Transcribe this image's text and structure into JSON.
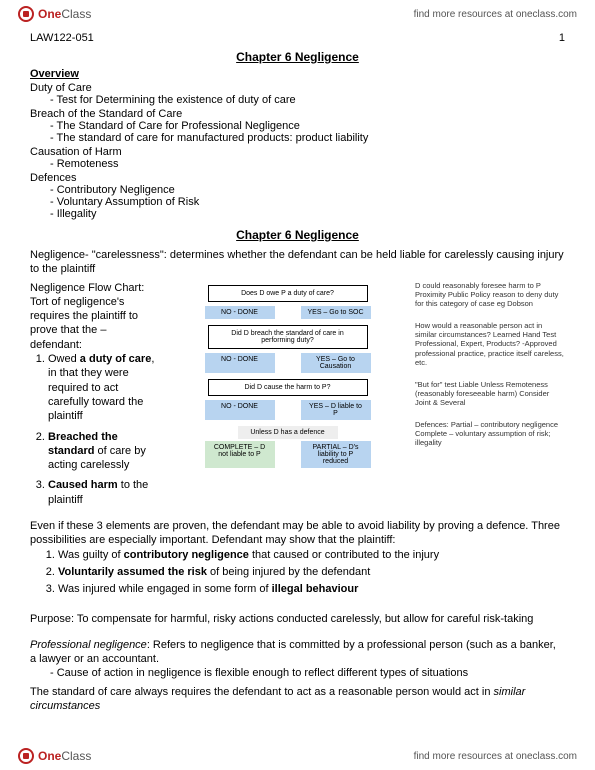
{
  "header": {
    "logo_one": "One",
    "logo_class": "Class",
    "link": "find more resources at oneclass.com"
  },
  "course": "LAW122-051",
  "page_number": "1",
  "title": "Chapter 6 Negligence",
  "overview": {
    "heading": "Overview",
    "duty_head": "Duty of Care",
    "duty_item": "Test for Determining the existence of duty of care",
    "breach_head": "Breach of the Standard of Care",
    "breach_item1": "The Standard of Care for Professional Negligence",
    "breach_item2": "The standard of care for manufactured products: product liability",
    "causation_head": "Causation of Harm",
    "causation_item": "Remoteness",
    "defences_head": "Defences",
    "def_item1": "Contributory Negligence",
    "def_item2": "Voluntary Assumption of Risk",
    "def_item3": "Illegality"
  },
  "subtitle": "Chapter 6 Negligence",
  "neg_def": "Negligence- \"carelessness\": determines whether the defendant can be held liable for carelessly causing injury to the plaintiff",
  "left": {
    "l1": "Negligence Flow Chart:",
    "l2": "Tort of negligence's",
    "l3": "requires the plaintiff to",
    "l4": "prove that the –",
    "l5": "defendant:",
    "li1a": "Owed ",
    "li1b": "a duty of care",
    "li1c": ", in that they were required to act carefully toward the plaintiff",
    "li2a": "Breached the standard",
    "li2b": " of care by acting carelessly",
    "li3a": "Caused harm",
    "li3b": " to the plaintiff"
  },
  "chart": {
    "q1": "Does D owe P a duty of care?",
    "no_done": "NO - DONE",
    "yes_soc": "YES – Go to SOC",
    "q2": "Did D breach the standard of care in performing duty?",
    "yes_caus": "YES – Go to Causation",
    "q3": "Did D cause the harm to P?",
    "yes_liable": "YES – D liable to P",
    "unless": "Unless D has a defence",
    "complete": "COMPLETE – D not liable to P",
    "partial": "PARTIAL – D's liability to P reduced"
  },
  "notes": {
    "n1": "D could reasonably foresee harm to P\nProximity\nPublic Policy reason to deny duty for this category of case eg Dobson",
    "n2": "How would a reasonable person act in similar circumstances?\nLearned Hand Test\nProfessional, Expert, Products?\n-Approved professional practice, practice itself careless, etc.",
    "n3": "\"But for\" test\nLiable Unless Remoteness (reasonably foreseeable harm)\nConsider Joint & Several",
    "n4": "Defences:\nPartial – contributory negligence\nComplete – voluntary assumption of risk; illegality"
  },
  "even_if": "Even if these 3 elements are proven, the defendant may be able to avoid liability by proving a defence. Three possibilities are especially important. Defendant may show that the plaintiff:",
  "list3": {
    "i1a": "Was guilty of ",
    "i1b": "contributory negligence",
    "i1c": " that caused or contributed to the injury",
    "i2a": "Voluntarily assumed the risk",
    "i2b": " of being injured by the defendant",
    "i3a": "Was injured while engaged in some form of ",
    "i3b": "illegal behaviour"
  },
  "purpose": "Purpose: To compensate for harmful, risky actions conducted carelessly, but allow for careful risk-taking",
  "prof_neg_label": "Professional negligence",
  "prof_neg_text": ": Refers to negligence that is committed by a professional person (such as a banker,  a lawyer or an accountant.",
  "prof_neg_sub": "Cause of action in negligence is flexible enough to reflect different types of situations",
  "standard_text1": "The standard of care always requires the defendant to act as a reasonable person would act in ",
  "standard_text2": "similar circumstances"
}
